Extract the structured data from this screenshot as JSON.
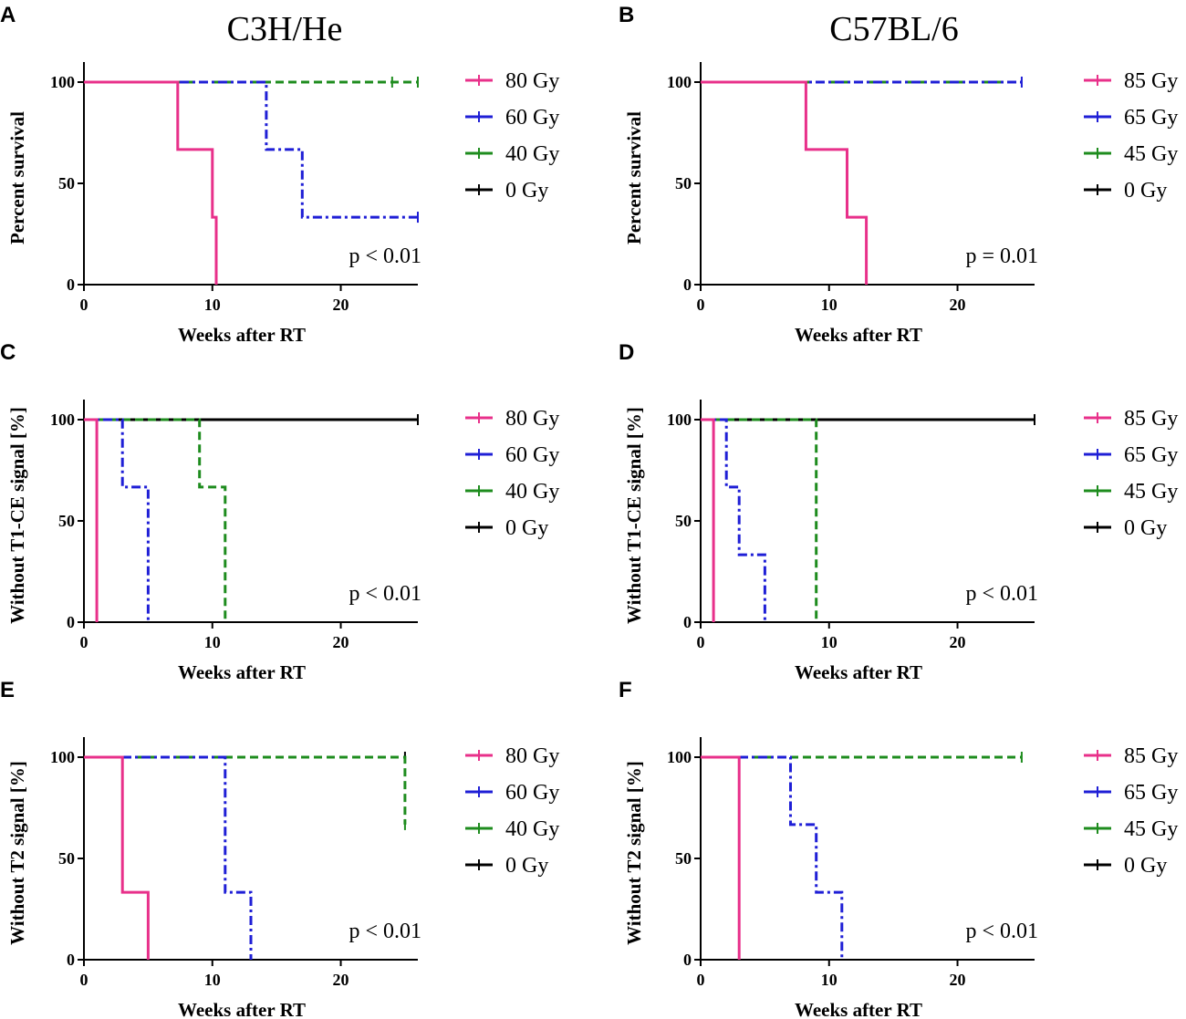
{
  "columns": [
    "C3H/He",
    "C57BL/6"
  ],
  "colors": {
    "high": "#e8308a",
    "mid": "#1f1fd6",
    "low": "#1e8c1e",
    "zero": "#000000"
  },
  "chart_data": [
    {
      "panel": "A",
      "type": "line",
      "step": true,
      "title": "",
      "xlabel": "Weeks after RT",
      "ylabel": "Percent survival",
      "xlim": [
        0,
        26
      ],
      "ylim": [
        0,
        100
      ],
      "xticks": [
        0,
        10,
        20
      ],
      "yticks": [
        0,
        50,
        100
      ],
      "pvalue": "p < 0.01",
      "series": [
        {
          "name": "80 Gy",
          "color_key": "high",
          "style": "solid",
          "x": [
            0,
            7.3,
            7.3,
            10,
            10,
            10.3,
            10.3
          ],
          "y": [
            100,
            100,
            66.7,
            66.7,
            33.3,
            33.3,
            0
          ],
          "censor": []
        },
        {
          "name": "60 Gy",
          "color_key": "mid",
          "style": "dashdot",
          "x": [
            0,
            14.2,
            14.2,
            17,
            17,
            26
          ],
          "y": [
            100,
            100,
            66.7,
            66.7,
            33.3,
            33.3
          ],
          "censor": [
            [
              26,
              33.3
            ]
          ]
        },
        {
          "name": "40 Gy",
          "color_key": "low",
          "style": "dashed",
          "x": [
            0,
            26
          ],
          "y": [
            100,
            100
          ],
          "censor": [
            [
              24,
              100
            ],
            [
              26,
              100
            ]
          ]
        },
        {
          "name": "0 Gy",
          "color_key": "zero",
          "style": "dashed",
          "x": [
            0,
            26
          ],
          "y": [
            100,
            100
          ],
          "censor": []
        }
      ]
    },
    {
      "panel": "B",
      "type": "line",
      "step": true,
      "title": "",
      "xlabel": "Weeks after RT",
      "ylabel": "Percent survival",
      "xlim": [
        0,
        26
      ],
      "ylim": [
        0,
        100
      ],
      "xticks": [
        0,
        10,
        20
      ],
      "yticks": [
        0,
        50,
        100
      ],
      "pvalue": "p = 0.01",
      "series": [
        {
          "name": "85 Gy",
          "color_key": "high",
          "style": "solid",
          "x": [
            0,
            8.2,
            8.2,
            11.4,
            11.4,
            12.9,
            12.9
          ],
          "y": [
            100,
            100,
            66.7,
            66.7,
            33.3,
            33.3,
            0
          ],
          "censor": []
        },
        {
          "name": "65 Gy",
          "color_key": "mid",
          "style": "dashdot",
          "x": [
            0,
            25
          ],
          "y": [
            100,
            100
          ],
          "censor": [
            [
              25,
              100
            ]
          ]
        },
        {
          "name": "45 Gy",
          "color_key": "low",
          "style": "dashed",
          "x": [
            0,
            25
          ],
          "y": [
            100,
            100
          ],
          "censor": []
        },
        {
          "name": "0 Gy",
          "color_key": "zero",
          "style": "dashed",
          "x": [
            0,
            25
          ],
          "y": [
            100,
            100
          ],
          "censor": []
        }
      ]
    },
    {
      "panel": "C",
      "type": "line",
      "step": true,
      "title": "",
      "xlabel": "Weeks after RT",
      "ylabel": "Without T1-CE signal [%]",
      "xlim": [
        0,
        26
      ],
      "ylim": [
        0,
        100
      ],
      "xticks": [
        0,
        10,
        20
      ],
      "yticks": [
        0,
        50,
        100
      ],
      "pvalue": "p < 0.01",
      "series": [
        {
          "name": "80 Gy",
          "color_key": "high",
          "style": "solid",
          "x": [
            0,
            1,
            1
          ],
          "y": [
            100,
            100,
            0
          ],
          "censor": []
        },
        {
          "name": "60 Gy",
          "color_key": "mid",
          "style": "dashdot",
          "x": [
            0,
            3,
            3,
            5,
            5
          ],
          "y": [
            100,
            100,
            66.7,
            66.7,
            0
          ],
          "censor": []
        },
        {
          "name": "40 Gy",
          "color_key": "low",
          "style": "dashed",
          "x": [
            0,
            9,
            9,
            11,
            11
          ],
          "y": [
            100,
            100,
            66.7,
            66.7,
            0
          ],
          "censor": []
        },
        {
          "name": "0 Gy",
          "color_key": "zero",
          "style": "solid",
          "x": [
            0,
            26
          ],
          "y": [
            100,
            100
          ],
          "censor": [
            [
              26,
              100
            ]
          ]
        }
      ]
    },
    {
      "panel": "D",
      "type": "line",
      "step": true,
      "title": "",
      "xlabel": "Weeks after RT",
      "ylabel": "Without T1-CE signal [%]",
      "xlim": [
        0,
        26
      ],
      "ylim": [
        0,
        100
      ],
      "xticks": [
        0,
        10,
        20
      ],
      "yticks": [
        0,
        50,
        100
      ],
      "pvalue": "p < 0.01",
      "series": [
        {
          "name": "85 Gy",
          "color_key": "high",
          "style": "solid",
          "x": [
            0,
            1,
            1
          ],
          "y": [
            100,
            100,
            0
          ],
          "censor": []
        },
        {
          "name": "65 Gy",
          "color_key": "mid",
          "style": "dashdot",
          "x": [
            0,
            2,
            2,
            3,
            3,
            5,
            5
          ],
          "y": [
            100,
            100,
            66.7,
            66.7,
            33.3,
            33.3,
            0
          ],
          "censor": []
        },
        {
          "name": "45 Gy",
          "color_key": "low",
          "style": "dashed",
          "x": [
            0,
            9,
            9
          ],
          "y": [
            100,
            100,
            0
          ],
          "censor": []
        },
        {
          "name": "0 Gy",
          "color_key": "zero",
          "style": "solid",
          "x": [
            0,
            26
          ],
          "y": [
            100,
            100
          ],
          "censor": [
            [
              26,
              100
            ]
          ]
        }
      ]
    },
    {
      "panel": "E",
      "type": "line",
      "step": true,
      "title": "",
      "xlabel": "Weeks after RT",
      "ylabel": "Without T2 signal [%]",
      "xlim": [
        0,
        26
      ],
      "ylim": [
        0,
        100
      ],
      "xticks": [
        0,
        10,
        20
      ],
      "yticks": [
        0,
        50,
        100
      ],
      "pvalue": "p < 0.01",
      "series": [
        {
          "name": "80 Gy",
          "color_key": "high",
          "style": "solid",
          "x": [
            0,
            3,
            3,
            5,
            5
          ],
          "y": [
            100,
            100,
            33.3,
            33.3,
            0
          ],
          "censor": []
        },
        {
          "name": "60 Gy",
          "color_key": "mid",
          "style": "dashdot",
          "x": [
            0,
            11,
            11,
            13,
            13
          ],
          "y": [
            100,
            100,
            33.3,
            33.3,
            0
          ],
          "censor": []
        },
        {
          "name": "40 Gy",
          "color_key": "low",
          "style": "dashed",
          "x": [
            0,
            25,
            25
          ],
          "y": [
            100,
            100,
            66.7
          ],
          "censor": [
            [
              25,
              66.7
            ]
          ]
        },
        {
          "name": "0 Gy",
          "color_key": "zero",
          "style": "dashed",
          "x": [
            0,
            25
          ],
          "y": [
            100,
            100
          ],
          "censor": [
            [
              25,
              100
            ]
          ]
        }
      ]
    },
    {
      "panel": "F",
      "type": "line",
      "step": true,
      "title": "",
      "xlabel": "Weeks after RT",
      "ylabel": "Without T2 signal [%]",
      "xlim": [
        0,
        26
      ],
      "ylim": [
        0,
        100
      ],
      "xticks": [
        0,
        10,
        20
      ],
      "yticks": [
        0,
        50,
        100
      ],
      "pvalue": "p < 0.01",
      "series": [
        {
          "name": "85 Gy",
          "color_key": "high",
          "style": "solid",
          "x": [
            0,
            3,
            3
          ],
          "y": [
            100,
            100,
            0
          ],
          "censor": []
        },
        {
          "name": "65 Gy",
          "color_key": "mid",
          "style": "dashdot",
          "x": [
            0,
            7,
            7,
            9,
            9,
            11,
            11
          ],
          "y": [
            100,
            100,
            66.7,
            66.7,
            33.3,
            33.3,
            0
          ],
          "censor": []
        },
        {
          "name": "45 Gy",
          "color_key": "low",
          "style": "dashed",
          "x": [
            0,
            25
          ],
          "y": [
            100,
            100
          ],
          "censor": [
            [
              25,
              100
            ]
          ]
        },
        {
          "name": "0 Gy",
          "color_key": "zero",
          "style": "dashed",
          "x": [
            0,
            25
          ],
          "y": [
            100,
            100
          ],
          "censor": []
        }
      ]
    }
  ]
}
